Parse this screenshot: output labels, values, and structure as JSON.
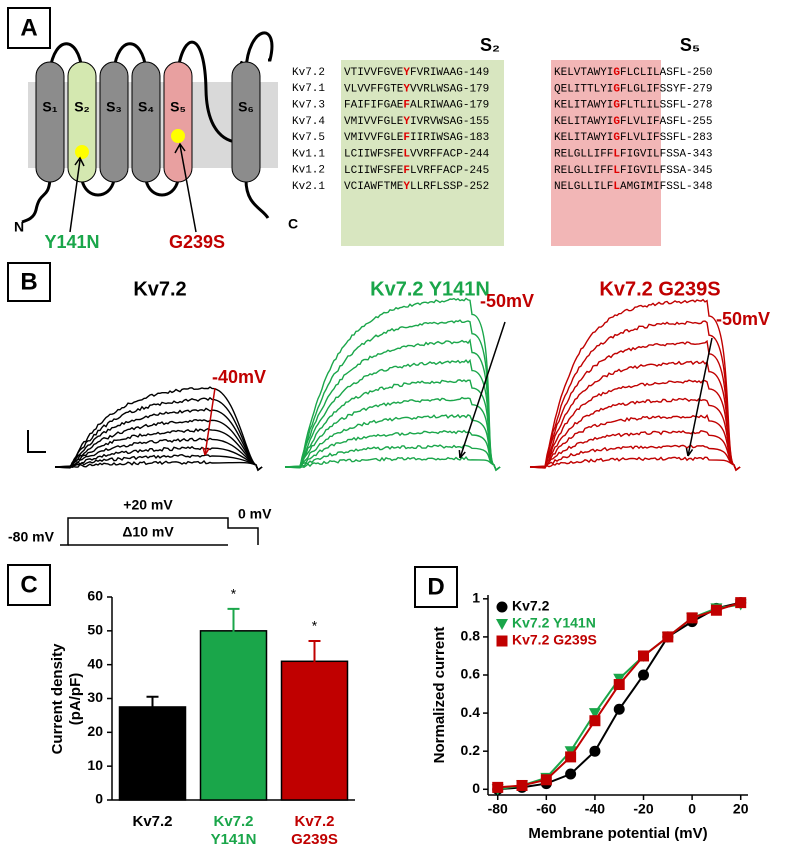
{
  "panels": {
    "a": "A",
    "b": "B",
    "c": "C",
    "d": "D"
  },
  "topology": {
    "segments": [
      "S₁",
      "S₂",
      "S₃",
      "S₄",
      "S₅",
      "S₆"
    ],
    "n_term": "N",
    "c_term": "C",
    "mutations": [
      {
        "label": "Y141N",
        "color": "#1aa64a"
      },
      {
        "label": "G239S",
        "color": "#c00000"
      }
    ]
  },
  "alignment": {
    "s2_header": "S₂",
    "s5_header": "S₅",
    "rows": [
      {
        "name": "Kv7.2",
        "s2": [
          "VTIVVFGVE",
          "Y",
          "FVRIWAAG"
        ],
        "s2_end": "-149",
        "s5": [
          "KELVTAWYI",
          "G",
          "FLCLILASFL"
        ],
        "s5_end": "-250"
      },
      {
        "name": "Kv7.1",
        "s2": [
          "VLVVFFGTE",
          "Y",
          "VVRLWSAG"
        ],
        "s2_end": "-179",
        "s5": [
          "QELITTLYI",
          "G",
          "FLGLIFSSYF"
        ],
        "s5_end": "-279"
      },
      {
        "name": "Kv7.3",
        "s2": [
          "FAIFIFGAE",
          "F",
          "ALRIWAAG"
        ],
        "s2_end": "-179",
        "s5": [
          "KELITAWYI",
          "G",
          "FLTLILSSFL"
        ],
        "s5_end": "-278"
      },
      {
        "name": "Kv7.4",
        "s2": [
          "VMIVVFGLE",
          "Y",
          "IVRVWSAG"
        ],
        "s2_end": "-155",
        "s5": [
          "KELITAWYI",
          "G",
          "FLVLIFASFL"
        ],
        "s5_end": "-255"
      },
      {
        "name": "Kv7.5",
        "s2": [
          "VMIVVFGLE",
          "F",
          "IIRIWSAG"
        ],
        "s2_end": "-183",
        "s5": [
          "KELITAWYI",
          "G",
          "FLVLIFSSFL"
        ],
        "s5_end": "-283"
      },
      {
        "name": "Kv1.1",
        "s2": [
          "LCIIWFSFE",
          "L",
          "VVRFFACP"
        ],
        "s2_end": "-244",
        "s5": [
          "RELGLLIFF",
          "L",
          "FIGVILFSSA"
        ],
        "s5_end": "-343"
      },
      {
        "name": "Kv1.2",
        "s2": [
          "LCIIWFSFE",
          "F",
          "LVRFFACP"
        ],
        "s2_end": "-245",
        "s5": [
          "RELGLLIFF",
          "L",
          "FIGVILFSSA"
        ],
        "s5_end": "-345"
      },
      {
        "name": "Kv2.1",
        "s2": [
          "VCIAWFTME",
          "Y",
          "LLRFLSSP"
        ],
        "s2_end": "-252",
        "s5": [
          "NELGLLILF",
          "L",
          "AMGIMIFSSL"
        ],
        "s5_end": "-348"
      }
    ]
  },
  "traces": {
    "titles": [
      {
        "text": "Kv7.2",
        "color": "#000000"
      },
      {
        "text": "Kv7.2 Y141N",
        "color": "#1aa64a"
      },
      {
        "text": "Kv7.2 G239S",
        "color": "#c00000"
      }
    ],
    "annotations": [
      "-40mV",
      "-50mV",
      "-50mV"
    ]
  },
  "protocol": {
    "hold": "-80 mV",
    "top": "+20 mV",
    "step": "Δ10 mV",
    "tail": "0 mV"
  },
  "chart_data": [
    {
      "type": "bar",
      "y_label": [
        "Current density",
        "(pA/pF)"
      ],
      "categories": [
        [
          "Kv7.2"
        ],
        [
          "Kv7.2",
          "Y141N"
        ],
        [
          "Kv7.2",
          "G239S"
        ]
      ],
      "values": [
        27.5,
        50,
        41
      ],
      "errors": [
        3,
        6.5,
        6
      ],
      "colors": [
        "#000000",
        "#1aa64a",
        "#c00000"
      ],
      "significance": [
        null,
        "*",
        "*"
      ],
      "ylim": [
        0,
        60
      ],
      "yticks": [
        0,
        10,
        20,
        30,
        40,
        50,
        60
      ]
    },
    {
      "type": "line",
      "x_label": "Membrane potential (mV)",
      "y_label": "Normalized current",
      "x": [
        -80,
        -70,
        -60,
        -50,
        -40,
        -30,
        -20,
        -10,
        0,
        10,
        20
      ],
      "series": [
        {
          "name": "Kv7.2",
          "color": "#000000",
          "marker": "circle",
          "values": [
            0.0,
            0.01,
            0.03,
            0.08,
            0.2,
            0.42,
            0.6,
            0.8,
            0.88,
            0.95,
            0.98
          ]
        },
        {
          "name": "Kv7.2 Y141N",
          "color": "#1aa64a",
          "marker": "triangle",
          "values": [
            0.0,
            0.02,
            0.06,
            0.2,
            0.4,
            0.58,
            0.7,
            0.8,
            0.9,
            0.95,
            0.97
          ]
        },
        {
          "name": "Kv7.2 G239S",
          "color": "#c00000",
          "marker": "square",
          "values": [
            0.01,
            0.02,
            0.05,
            0.17,
            0.36,
            0.55,
            0.7,
            0.8,
            0.9,
            0.94,
            0.98
          ]
        }
      ],
      "xlim": [
        -84,
        23
      ],
      "ylim": [
        -0.03,
        1.02
      ],
      "xticks": [
        -80,
        -60,
        -40,
        -20,
        0,
        20
      ],
      "yticks": [
        0,
        0.2,
        0.4,
        0.6,
        0.8,
        1
      ],
      "legend": "upper left"
    }
  ]
}
